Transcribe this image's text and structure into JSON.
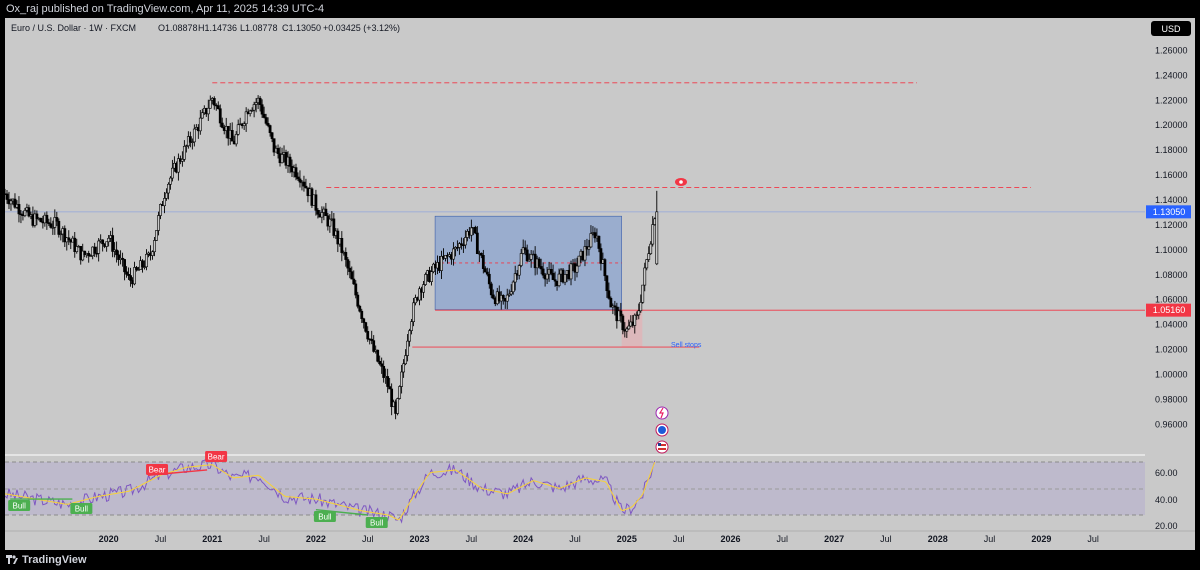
{
  "header": {
    "publisher_line": "Ox_raj published on TradingView.com, Apr 11, 2025 14:39 UTC-4"
  },
  "chart_header": {
    "symbol_line": "Euro / U.S. Dollar · 1W · FXCM",
    "ohlc": {
      "o_label": "O",
      "o": "1.08878",
      "h_label": "H",
      "h": "1.14736",
      "l_label": "L",
      "l": "1.08778",
      "c_label": "C",
      "c": "1.13050",
      "change": "+0.03425 (+3.12%)"
    }
  },
  "currency_button": "USD",
  "footer": {
    "brand": "TradingView"
  },
  "colors": {
    "chart_bg": "#c9c9c9",
    "candle": "#000000",
    "box_fill": "#8aa3cf",
    "box_stroke": "#3b5ea8",
    "red_line": "#f23645",
    "current_price_bg": "#2962ff",
    "rsi_line": "#7e57c2",
    "rsi_ma": "#f4d03f",
    "bull_label": "#4caf50",
    "bear_label": "#f23645"
  },
  "chart_data": {
    "type": "candlestick",
    "symbol": "EUR/USD",
    "timeframe": "1W",
    "y_axis": {
      "ticks": [
        "1.26000",
        "1.24000",
        "1.22000",
        "1.20000",
        "1.18000",
        "1.16000",
        "1.14000",
        "1.12000",
        "1.10000",
        "1.08000",
        "1.06000",
        "1.04000",
        "1.02000",
        "1.00000",
        "0.98000",
        "0.96000"
      ],
      "range": [
        0.945,
        1.27
      ]
    },
    "x_axis": {
      "ticks": [
        {
          "label": "2020",
          "major": true,
          "date": 2020.0
        },
        {
          "label": "Jul",
          "major": false,
          "date": 2020.5
        },
        {
          "label": "2021",
          "major": true,
          "date": 2021.0
        },
        {
          "label": "Jul",
          "major": false,
          "date": 2021.5
        },
        {
          "label": "2022",
          "major": true,
          "date": 2022.0
        },
        {
          "label": "Jul",
          "major": false,
          "date": 2022.5
        },
        {
          "label": "2023",
          "major": true,
          "date": 2023.0
        },
        {
          "label": "Jul",
          "major": false,
          "date": 2023.5
        },
        {
          "label": "2024",
          "major": true,
          "date": 2024.0
        },
        {
          "label": "Jul",
          "major": false,
          "date": 2024.5
        },
        {
          "label": "2025",
          "major": true,
          "date": 2025.0
        },
        {
          "label": "Jul",
          "major": false,
          "date": 2025.5
        },
        {
          "label": "2026",
          "major": true,
          "date": 2026.0
        },
        {
          "label": "Jul",
          "major": false,
          "date": 2026.5
        },
        {
          "label": "2027",
          "major": true,
          "date": 2027.0
        },
        {
          "label": "Jul",
          "major": false,
          "date": 2027.5
        },
        {
          "label": "2028",
          "major": true,
          "date": 2028.0
        },
        {
          "label": "Jul",
          "major": false,
          "date": 2028.5
        },
        {
          "label": "2029",
          "major": true,
          "date": 2029.0
        },
        {
          "label": "Jul",
          "major": false,
          "date": 2029.5
        }
      ],
      "range": [
        2019.0,
        2030.0
      ]
    },
    "price_path": [
      {
        "date": 2019.0,
        "price": 1.145
      },
      {
        "date": 2019.25,
        "price": 1.125
      },
      {
        "date": 2019.5,
        "price": 1.12
      },
      {
        "date": 2019.75,
        "price": 1.095
      },
      {
        "date": 2020.0,
        "price": 1.11
      },
      {
        "date": 2020.2,
        "price": 1.075
      },
      {
        "date": 2020.4,
        "price": 1.095
      },
      {
        "date": 2020.55,
        "price": 1.15
      },
      {
        "date": 2020.7,
        "price": 1.175
      },
      {
        "date": 2020.9,
        "price": 1.205
      },
      {
        "date": 2021.0,
        "price": 1.222
      },
      {
        "date": 2021.2,
        "price": 1.185
      },
      {
        "date": 2021.35,
        "price": 1.215
      },
      {
        "date": 2021.45,
        "price": 1.22
      },
      {
        "date": 2021.6,
        "price": 1.18
      },
      {
        "date": 2021.85,
        "price": 1.16
      },
      {
        "date": 2022.0,
        "price": 1.135
      },
      {
        "date": 2022.15,
        "price": 1.12
      },
      {
        "date": 2022.25,
        "price": 1.1
      },
      {
        "date": 2022.4,
        "price": 1.06
      },
      {
        "date": 2022.55,
        "price": 1.02
      },
      {
        "date": 2022.7,
        "price": 0.99
      },
      {
        "date": 2022.77,
        "price": 0.965
      },
      {
        "date": 2022.9,
        "price": 1.04
      },
      {
        "date": 2023.0,
        "price": 1.07
      },
      {
        "date": 2023.15,
        "price": 1.085
      },
      {
        "date": 2023.35,
        "price": 1.1
      },
      {
        "date": 2023.5,
        "price": 1.118
      },
      {
        "date": 2023.7,
        "price": 1.065
      },
      {
        "date": 2023.82,
        "price": 1.055
      },
      {
        "date": 2024.0,
        "price": 1.1
      },
      {
        "date": 2024.3,
        "price": 1.075
      },
      {
        "date": 2024.5,
        "price": 1.085
      },
      {
        "date": 2024.7,
        "price": 1.115
      },
      {
        "date": 2024.85,
        "price": 1.055
      },
      {
        "date": 2025.0,
        "price": 1.035
      },
      {
        "date": 2025.1,
        "price": 1.045
      },
      {
        "date": 2025.18,
        "price": 1.085
      },
      {
        "date": 2025.27,
        "price": 1.13
      }
    ],
    "levels": [
      {
        "name": "high-2021",
        "price": 1.234,
        "style": "dashed",
        "color": "#f23645",
        "from": 2021.0,
        "to": 2027.8
      },
      {
        "name": "resistance",
        "price": 1.15,
        "style": "dashed",
        "color": "#f23645",
        "from": 2022.1,
        "to": 2028.9
      },
      {
        "name": "range-low",
        "price": 1.0516,
        "style": "solid",
        "color": "#f23645",
        "from": 2023.15,
        "to": 2030.0
      },
      {
        "name": "sell-stops",
        "price": 1.022,
        "style": "solid",
        "color": "#f23645",
        "from": 2022.93,
        "to": 2025.7
      }
    ],
    "range_box": {
      "from": 2023.15,
      "to": 2024.95,
      "top": 1.127,
      "bottom": 1.052,
      "mid": 1.0895
    },
    "annotations": {
      "sell_stops": "Sell stops"
    },
    "current_price": {
      "value": "1.13050",
      "price": 1.1305
    },
    "level_label": {
      "value": "1.05160",
      "price": 1.0516
    },
    "rsi": {
      "ticks": [
        "60.00",
        "40.00",
        "20.00"
      ],
      "labels": [
        {
          "text": "Bull",
          "date": 2019.05,
          "type": "bull"
        },
        {
          "text": "Bull",
          "date": 2019.65,
          "type": "bull"
        },
        {
          "text": "Bear",
          "date": 2020.38,
          "type": "bear"
        },
        {
          "text": "Bear",
          "date": 2020.95,
          "type": "bear"
        },
        {
          "text": "Bull",
          "date": 2022.0,
          "type": "bull"
        },
        {
          "text": "Bull",
          "date": 2022.5,
          "type": "bull"
        }
      ],
      "values": [
        {
          "date": 2019.0,
          "v": 46
        },
        {
          "date": 2019.3,
          "v": 42
        },
        {
          "date": 2019.6,
          "v": 38
        },
        {
          "date": 2019.9,
          "v": 44
        },
        {
          "date": 2020.2,
          "v": 48
        },
        {
          "date": 2020.5,
          "v": 60
        },
        {
          "date": 2020.75,
          "v": 66
        },
        {
          "date": 2021.0,
          "v": 68
        },
        {
          "date": 2021.2,
          "v": 58
        },
        {
          "date": 2021.45,
          "v": 60
        },
        {
          "date": 2021.7,
          "v": 44
        },
        {
          "date": 2022.0,
          "v": 42
        },
        {
          "date": 2022.2,
          "v": 38
        },
        {
          "date": 2022.45,
          "v": 33
        },
        {
          "date": 2022.7,
          "v": 30
        },
        {
          "date": 2022.8,
          "v": 26
        },
        {
          "date": 2022.95,
          "v": 45
        },
        {
          "date": 2023.1,
          "v": 62
        },
        {
          "date": 2023.35,
          "v": 64
        },
        {
          "date": 2023.6,
          "v": 50
        },
        {
          "date": 2023.85,
          "v": 46
        },
        {
          "date": 2024.1,
          "v": 56
        },
        {
          "date": 2024.35,
          "v": 50
        },
        {
          "date": 2024.6,
          "v": 58
        },
        {
          "date": 2024.8,
          "v": 55
        },
        {
          "date": 2024.95,
          "v": 33
        },
        {
          "date": 2025.05,
          "v": 36
        },
        {
          "date": 2025.15,
          "v": 45
        },
        {
          "date": 2025.27,
          "v": 70
        }
      ]
    }
  }
}
